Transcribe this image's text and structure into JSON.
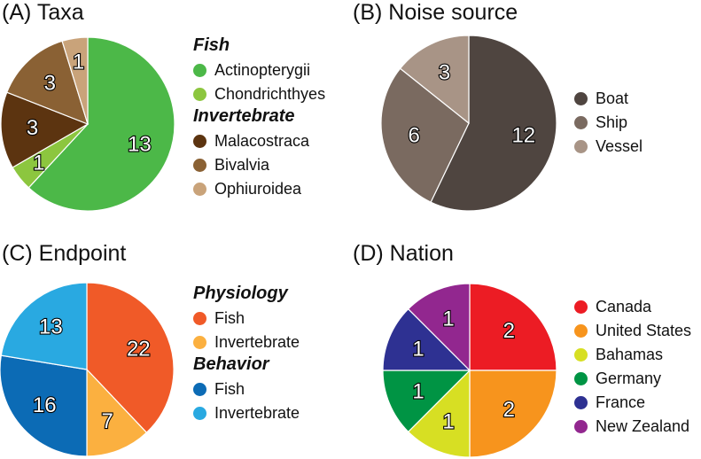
{
  "chart_data": [
    {
      "type": "pie",
      "title": "(A) Taxa",
      "slices": [
        {
          "label": "Actinopterygii",
          "value": 13,
          "color": "#4cb848"
        },
        {
          "label": "Chondrichthyes",
          "value": 1,
          "color": "#8cc63f"
        },
        {
          "label": "Malacostraca",
          "value": 3,
          "color": "#5c3410"
        },
        {
          "label": "Bivalvia",
          "value": 3,
          "color": "#8a6134"
        },
        {
          "label": "Ophiuroidea",
          "value": 1,
          "color": "#c9a37a"
        }
      ],
      "legend_groups": [
        {
          "name": "Fish",
          "items": [
            0,
            1
          ]
        },
        {
          "name": "Invertebrate",
          "items": [
            2,
            3,
            4
          ]
        }
      ]
    },
    {
      "type": "pie",
      "title": "(B) Noise source",
      "slices": [
        {
          "label": "Boat",
          "value": 12,
          "color": "#4f4540"
        },
        {
          "label": "Ship",
          "value": 6,
          "color": "#7a6a60"
        },
        {
          "label": "Vessel",
          "value": 3,
          "color": "#a89486"
        }
      ],
      "legend_groups": [
        {
          "name": "",
          "items": [
            0,
            1,
            2
          ]
        }
      ]
    },
    {
      "type": "pie",
      "title": "(C) Endpoint",
      "slices": [
        {
          "label": "Fish",
          "value": 22,
          "color": "#f05a28"
        },
        {
          "label": "Invertebrate",
          "value": 7,
          "color": "#fbb040"
        },
        {
          "label": "Fish",
          "value": 16,
          "color": "#0c6bb5"
        },
        {
          "label": "Invertebrate",
          "value": 13,
          "color": "#29a9e1"
        }
      ],
      "legend_groups": [
        {
          "name": "Physiology",
          "items": [
            0,
            1
          ]
        },
        {
          "name": "Behavior",
          "items": [
            2,
            3
          ]
        }
      ]
    },
    {
      "type": "pie",
      "title": "(D) Nation",
      "slices": [
        {
          "label": "Canada",
          "value": 2,
          "color": "#ec1c24"
        },
        {
          "label": "United States",
          "value": 2,
          "color": "#f7941d"
        },
        {
          "label": "Bahamas",
          "value": 1,
          "color": "#d7df23"
        },
        {
          "label": "Germany",
          "value": 1,
          "color": "#009444"
        },
        {
          "label": "France",
          "value": 1,
          "color": "#2e3192"
        },
        {
          "label": "New Zealand",
          "value": 1,
          "color": "#92278f"
        }
      ],
      "legend_groups": [
        {
          "name": "",
          "items": [
            0,
            1,
            2,
            3,
            4,
            5
          ]
        }
      ]
    }
  ]
}
